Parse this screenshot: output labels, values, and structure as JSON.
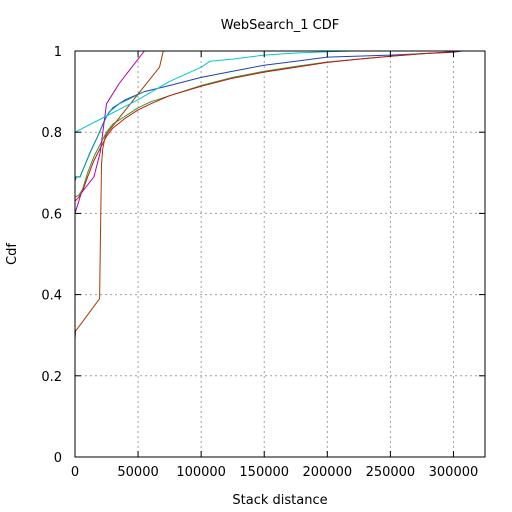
{
  "chart_data": {
    "type": "line",
    "title": "WebSearch_1 CDF",
    "xlabel": "Stack distance",
    "ylabel": "Cdf",
    "xlim": [
      0,
      325000
    ],
    "ylim": [
      0,
      1
    ],
    "x_ticks": [
      0,
      50000,
      100000,
      150000,
      200000,
      250000,
      300000
    ],
    "x_tick_labels": [
      "0",
      "50000",
      "100000",
      "150000",
      "200000",
      "250000",
      "300000"
    ],
    "y_ticks": [
      0,
      0.2,
      0.4,
      0.6,
      0.8,
      1
    ],
    "y_tick_labels": [
      "0",
      "0.2",
      "0.4",
      "0.6",
      "0.8",
      "1"
    ],
    "grid": true,
    "legend": "none",
    "series": [
      {
        "color": "#1f3fbf",
        "points": [
          [
            0,
            0.68
          ],
          [
            1000,
            0.69
          ],
          [
            4000,
            0.69
          ],
          [
            8000,
            0.72
          ],
          [
            12000,
            0.75
          ],
          [
            18000,
            0.79
          ],
          [
            25000,
            0.84
          ],
          [
            30000,
            0.86
          ],
          [
            40000,
            0.88
          ],
          [
            55000,
            0.9
          ],
          [
            75000,
            0.915
          ],
          [
            100000,
            0.935
          ],
          [
            125000,
            0.95
          ],
          [
            150000,
            0.965
          ],
          [
            175000,
            0.975
          ],
          [
            200000,
            0.985
          ],
          [
            250000,
            0.99
          ],
          [
            300000,
            0.997
          ],
          [
            307000,
            1.0
          ]
        ]
      },
      {
        "color": "#00a0a0",
        "points": [
          [
            0,
            0.69
          ],
          [
            4000,
            0.69
          ],
          [
            8000,
            0.72
          ],
          [
            12000,
            0.75
          ],
          [
            18000,
            0.79
          ],
          [
            22000,
            0.82
          ],
          [
            27000,
            0.85
          ],
          [
            35000,
            0.87
          ],
          [
            45000,
            0.885
          ],
          [
            55000,
            0.9
          ]
        ]
      },
      {
        "color": "#2aa02a",
        "points": [
          [
            0,
            0.64
          ],
          [
            3000,
            0.645
          ],
          [
            6000,
            0.66
          ],
          [
            10000,
            0.7
          ],
          [
            15000,
            0.74
          ],
          [
            20000,
            0.77
          ],
          [
            25000,
            0.8
          ],
          [
            30000,
            0.82
          ],
          [
            40000,
            0.84
          ],
          [
            50000,
            0.86
          ],
          [
            60000,
            0.875
          ],
          [
            75000,
            0.89
          ],
          [
            100000,
            0.915
          ],
          [
            125000,
            0.935
          ],
          [
            150000,
            0.95
          ],
          [
            175000,
            0.962
          ],
          [
            200000,
            0.973
          ],
          [
            225000,
            0.98
          ],
          [
            250000,
            0.987
          ],
          [
            275000,
            0.993
          ],
          [
            300000,
            0.998
          ],
          [
            305000,
            1.0
          ]
        ]
      },
      {
        "color": "#d01010",
        "points": [
          [
            0,
            0.63
          ],
          [
            3000,
            0.64
          ],
          [
            6000,
            0.655
          ],
          [
            10000,
            0.69
          ],
          [
            15000,
            0.73
          ],
          [
            20000,
            0.76
          ],
          [
            25000,
            0.79
          ],
          [
            30000,
            0.81
          ],
          [
            40000,
            0.835
          ],
          [
            50000,
            0.855
          ],
          [
            60000,
            0.87
          ],
          [
            75000,
            0.89
          ],
          [
            100000,
            0.913
          ],
          [
            125000,
            0.933
          ],
          [
            150000,
            0.948
          ],
          [
            175000,
            0.96
          ],
          [
            200000,
            0.972
          ],
          [
            225000,
            0.98
          ],
          [
            250000,
            0.987
          ],
          [
            275000,
            0.993
          ],
          [
            300000,
            0.998
          ],
          [
            305000,
            1.0
          ]
        ]
      },
      {
        "color": "#a03c00",
        "points": [
          [
            0,
            0.29
          ],
          [
            500,
            0.31
          ],
          [
            19500,
            0.39
          ],
          [
            20000,
            0.5
          ],
          [
            21000,
            0.72
          ],
          [
            22000,
            0.76
          ],
          [
            24000,
            0.79
          ],
          [
            26000,
            0.8
          ],
          [
            67000,
            0.96
          ],
          [
            70000,
            1.0
          ]
        ]
      },
      {
        "color": "#b000b0",
        "points": [
          [
            0,
            0.6
          ],
          [
            5000,
            0.65
          ],
          [
            10000,
            0.67
          ],
          [
            15000,
            0.69
          ],
          [
            20000,
            0.75
          ],
          [
            25000,
            0.87
          ],
          [
            35000,
            0.92
          ],
          [
            45000,
            0.96
          ],
          [
            55000,
            1.0
          ]
        ]
      },
      {
        "color": "#00c8d8",
        "points": [
          [
            0,
            0.8
          ],
          [
            25000,
            0.84
          ],
          [
            50000,
            0.88
          ],
          [
            75000,
            0.925
          ],
          [
            100000,
            0.96
          ],
          [
            107000,
            0.975
          ],
          [
            125000,
            0.98
          ],
          [
            150000,
            0.99
          ],
          [
            175000,
            0.995
          ],
          [
            200000,
            0.998
          ],
          [
            220000,
            1.0
          ]
        ]
      }
    ]
  }
}
